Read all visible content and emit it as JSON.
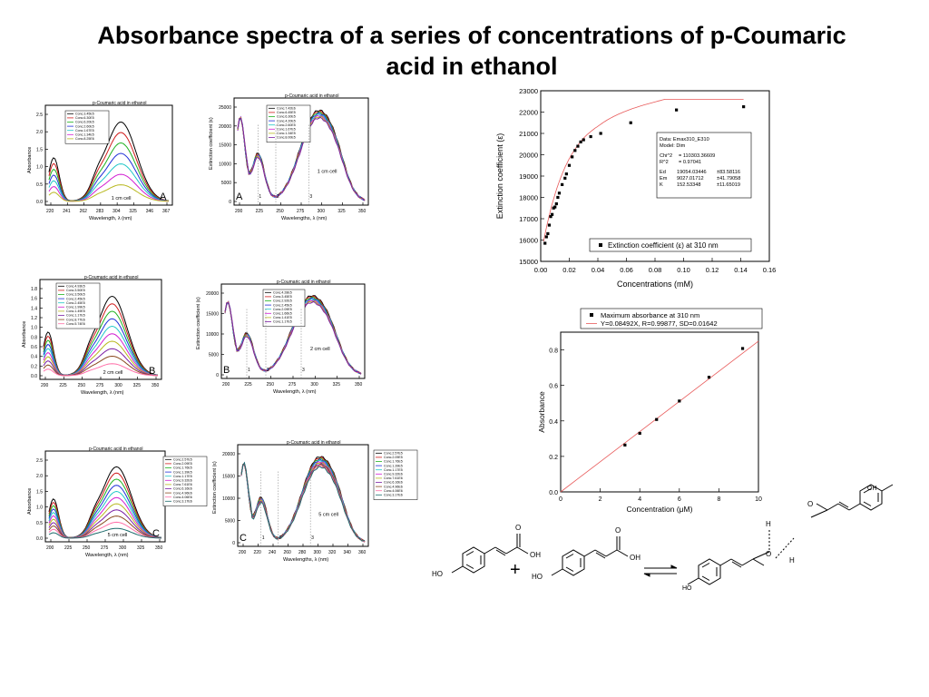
{
  "slide": {
    "title_line1": "Absorbance spectra of a series of concentrations of p-Coumaric",
    "title_line2": "acid in ethanol"
  },
  "spectra": [
    {
      "id": "abs-A",
      "kind": "absorbance",
      "plot_title": "p-Coumaric acid in ethanol",
      "xlabel": "Wavelength, λ (nm)",
      "ylabel": "Absorbance",
      "xticks": [
        "220",
        "241",
        "262",
        "283",
        "304",
        "325",
        "346",
        "367"
      ],
      "yticks": [
        "0.0",
        "0.5",
        "1.0",
        "1.5",
        "2.0",
        "2.5"
      ],
      "ymax": 2.8,
      "cell": "1 cm cell",
      "letter": "A",
      "legend": [
        "Conc.3.45E5",
        "Conc.6.30E5",
        "Conc.6.20E5",
        "Conc.2.60E5",
        "Conc.1.67E5",
        "Conc.1.34E5",
        "Conc.8.25E6"
      ]
    },
    {
      "id": "eps-A",
      "kind": "epsilon",
      "plot_title": "p-Coumaric acid in ethanol",
      "xlabel": "Wavelengths, λ (nm)",
      "ylabel": "Extinction coefficient (ε)",
      "xticks": [
        "200",
        "225",
        "250",
        "275",
        "300",
        "325",
        "350"
      ],
      "yticks": [
        "0",
        "5000",
        "10000",
        "15000",
        "20000",
        "25000"
      ],
      "ymax": 25000,
      "cell": "1 cm cell",
      "letter": "A",
      "markers": [
        "1",
        "2",
        "3"
      ],
      "legend": [
        "Conc.7.42E6",
        "Conc.6.45E5",
        "Conc.6.30E5",
        "Conc.4.20E5",
        "Conc.2.60E5",
        "Conc.1.67E5",
        "Conc.1.34E5",
        "Conc.8.00E5"
      ]
    },
    {
      "id": "abs-B",
      "kind": "absorbance",
      "plot_title": "p-Coumaric acid in ethanol",
      "xlabel": "Wavelength, λ (nm)",
      "ylabel": "Absorbance",
      "xticks": [
        "200",
        "225",
        "250",
        "275",
        "300",
        "325",
        "350"
      ],
      "yticks": [
        "0.0",
        "0.2",
        "0.4",
        "0.6",
        "0.8",
        "1.0",
        "1.2",
        "1.4",
        "1.6",
        "1.8"
      ],
      "ymax": 1.85,
      "cell": "2 cm cell",
      "letter": "B",
      "legend": [
        "Conc.4.93E5",
        "Conc.3.50E5",
        "Conc.3.50E5",
        "Conc.2.45E5",
        "Conc.2.45E5",
        "Conc.1.99E5",
        "Conc.1.49E5",
        "Conc.1.17E5",
        "Conc.8.77E6",
        "Conc.5.74E6"
      ]
    },
    {
      "id": "eps-B",
      "kind": "epsilon",
      "plot_title": "p-Coumaric acid in ethanol",
      "xlabel": "Wavelength, λ (nm)",
      "ylabel": "Extinction coefficient (ε)",
      "xticks": [
        "200",
        "225",
        "250",
        "275",
        "300",
        "325",
        "350"
      ],
      "yticks": [
        "0",
        "5000",
        "10000",
        "15000",
        "20000"
      ],
      "ymax": 21000,
      "cell": "2 cm cell",
      "letter": "B",
      "markers": [
        "1",
        "2",
        "3"
      ],
      "legend": [
        "Conc.4.28E5",
        "Conc.3.45E5",
        "Conc.2.92E5",
        "Conc.2.45E5",
        "Conc.2.09E5",
        "Conc.1.66E5",
        "Conc.1.41E5",
        "Conc.1.17E5"
      ]
    },
    {
      "id": "abs-C",
      "kind": "absorbance",
      "plot_title": "p-Coumaric acid in ethanol",
      "xlabel": "Wavelength, λ (nm)",
      "ylabel": "Absorbance",
      "xticks": [
        "200",
        "225",
        "250",
        "275",
        "300",
        "325",
        "350"
      ],
      "yticks": [
        "0.0",
        "0.5",
        "1.0",
        "1.5",
        "2.0",
        "2.5"
      ],
      "ymax": 2.7,
      "cell": "5 cm cell",
      "letter": "C",
      "legend": [
        "Conc.2.57E5",
        "Conc.2.09E5",
        "Conc.1.76E5",
        "Conc.1.39E5",
        "Conc.1.17E5",
        "Conc.9.32E6",
        "Conc.7.61E6",
        "Conc.6.16E6",
        "Conc.4.96E6",
        "Conc.4.06E6",
        "Conc.3.17E6"
      ]
    },
    {
      "id": "eps-C",
      "kind": "epsilon",
      "plot_title": "p-Coumaric acid in ethanol",
      "xlabel": "Wavelengths, λ (nm)",
      "ylabel": "Extinction coefficient (ε)",
      "xticks": [
        "200",
        "220",
        "240",
        "260",
        "280",
        "300",
        "320",
        "340",
        "360"
      ],
      "yticks": [
        "0",
        "5000",
        "10000",
        "15000",
        "20000"
      ],
      "ymax": 22000,
      "cell": "5 cm cell",
      "letter": "C",
      "markers": [
        "1",
        "2",
        "3"
      ],
      "legend": [
        "Conc.2.57E5",
        "Conc.2.09E5",
        "Conc.1.76E5",
        "Conc.1.39E5",
        "Conc.1.17E5",
        "Conc.9.32E6",
        "Conc.7.61E6",
        "Conc.6.16E6",
        "Conc.4.96E6",
        "Conc.4.06E6",
        "Conc.3.17E6"
      ]
    }
  ],
  "chart_data": [
    {
      "type": "scatter",
      "xlabel": "Concentrations (mM)",
      "ylabel": "Extinction coefficient (ε)",
      "xlim": [
        0.0,
        0.16
      ],
      "ylim": [
        15000,
        23000
      ],
      "xticks": [
        "0.00",
        "0.02",
        "0.04",
        "0.06",
        "0.08",
        "0.10",
        "0.12",
        "0.14",
        "0.16"
      ],
      "yticks": [
        "15000",
        "16000",
        "17000",
        "18000",
        "19000",
        "20000",
        "21000",
        "22000",
        "23000"
      ],
      "legend": [
        "Extinction coefficient (ε) at 310 nm"
      ],
      "fit_box": {
        "l1": "Data: Emax310_E310",
        "l2": "Model: Dim",
        "l3a": "Chi^2",
        "l3b": "= 110303.36609",
        "l4a": "R^2",
        "l4b": "= 0.97041",
        "l5a": "Ed",
        "l5b": "19054.03446",
        "l5c": "±83.58116",
        "l6a": "Em",
        "l6b": "9027.01712",
        "l6c": "±41.79058",
        "l7a": "K",
        "l7b": "152.53348",
        "l7c": "±11.65019"
      },
      "series": [
        {
          "name": "Extinction coefficient (ε) at 310 nm",
          "x": [
            0.003,
            0.004,
            0.005,
            0.006,
            0.007,
            0.008,
            0.009,
            0.01,
            0.011,
            0.012,
            0.013,
            0.015,
            0.017,
            0.018,
            0.02,
            0.022,
            0.024,
            0.026,
            0.028,
            0.03,
            0.035,
            0.042,
            0.063,
            0.095,
            0.142
          ],
          "y": [
            15850,
            16150,
            16300,
            16700,
            17100,
            17200,
            17500,
            17550,
            17700,
            18000,
            18200,
            18600,
            18900,
            19100,
            19500,
            19900,
            20200,
            20400,
            20600,
            20700,
            20850,
            21000,
            21500,
            22100,
            22250
          ]
        }
      ]
    },
    {
      "type": "scatter",
      "xlabel": "Concentration (μM)",
      "ylabel": "Absorbance",
      "xlim": [
        0,
        10
      ],
      "ylim": [
        0.0,
        0.9
      ],
      "xticks": [
        "0",
        "2",
        "4",
        "6",
        "8",
        "10"
      ],
      "yticks": [
        "0.0",
        "0.2",
        "0.4",
        "0.6",
        "0.8"
      ],
      "legend": [
        "Maximum absorbance at 310 nm",
        "Y=0.08492X, R=0.99877, SD=0.01642"
      ],
      "series": [
        {
          "name": "Maximum absorbance at 310 nm",
          "x": [
            3.25,
            4.0,
            4.85,
            6.0,
            7.5,
            9.2
          ],
          "y": [
            0.264,
            0.33,
            0.408,
            0.512,
            0.646,
            0.808
          ]
        },
        {
          "name": "Y=0.08492X, R=0.99877, SD=0.01642",
          "slope": 0.08492
        }
      ]
    }
  ],
  "structures": {
    "oh": "OH",
    "o": "O",
    "ho": "HO",
    "h": "H",
    "plus": "+"
  }
}
